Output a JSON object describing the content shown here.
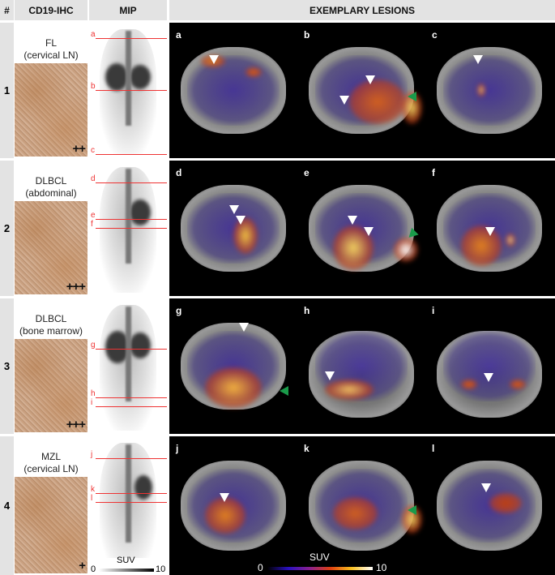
{
  "headers": {
    "num": "#",
    "ihc": "CD19-IHC",
    "mip": "MIP",
    "lesions": "EXEMPLARY LESIONS"
  },
  "rows": [
    {
      "num": "1",
      "diagnosis": "FL",
      "site": "(cervical LN)",
      "score": "++",
      "lines": [
        "a",
        "b",
        "c"
      ],
      "panels": [
        "a",
        "b",
        "c"
      ],
      "green_arrow_panels": [
        "b"
      ]
    },
    {
      "num": "2",
      "diagnosis": "DLBCL",
      "site": "(abdominal)",
      "score": "+++",
      "lines": [
        "d",
        "e",
        "f"
      ],
      "panels": [
        "d",
        "e",
        "f"
      ],
      "green_arrow_panels": [
        "e"
      ]
    },
    {
      "num": "3",
      "diagnosis": "DLBCL",
      "site": "(bone marrow)",
      "score": "+++",
      "lines": [
        "g",
        "h",
        "i"
      ],
      "panels": [
        "g",
        "h",
        "i"
      ],
      "green_arrow_panels": [
        "g"
      ]
    },
    {
      "num": "4",
      "diagnosis": "MZL",
      "site": "(cervical LN)",
      "score": "+",
      "lines": [
        "j",
        "k",
        "l"
      ],
      "panels": [
        "j",
        "k",
        "l"
      ],
      "green_arrow_panels": [
        "k"
      ]
    }
  ],
  "mip_colorbar": {
    "label": "SUV",
    "min": "0",
    "max": "10",
    "colors": [
      "#ffffff",
      "#000000"
    ]
  },
  "pet_colorbar": {
    "label": "SUV",
    "min": "0",
    "max": "10",
    "colors": [
      "#000000",
      "#2a10c0",
      "#8a2090",
      "#e04010",
      "#f8c020",
      "#ffffff"
    ]
  },
  "colors": {
    "header_bg": "#e3e3e3",
    "slice_line": "#e33333",
    "lesion_arrow": "#ffffff",
    "green_arrow": "#1a9a4a",
    "ihc_stain": "#c8a078"
  }
}
